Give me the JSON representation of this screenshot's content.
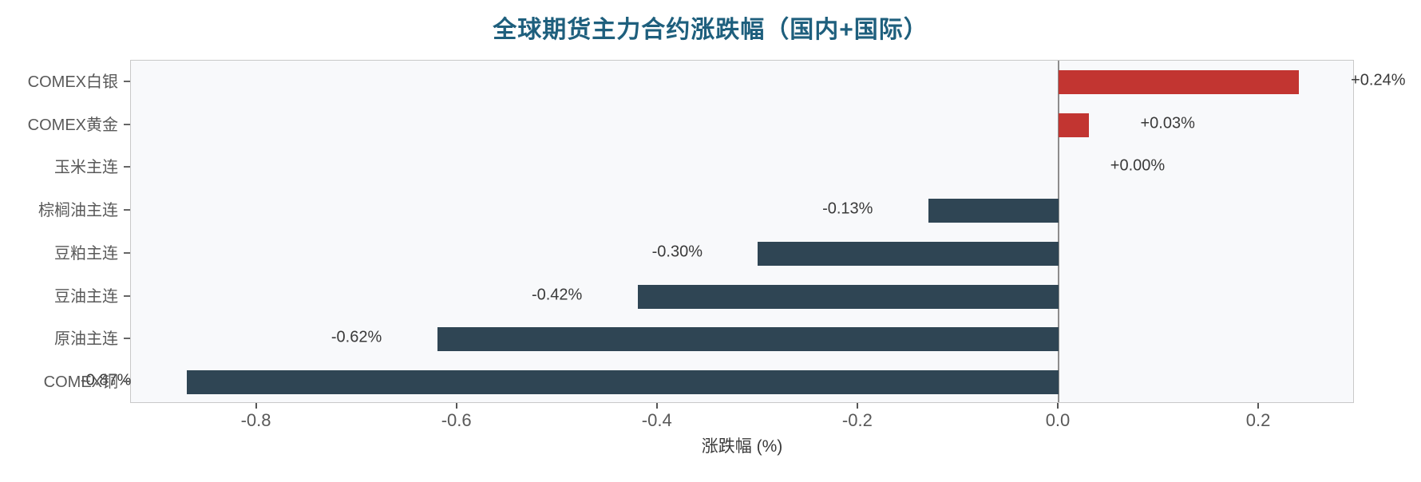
{
  "chart_data": {
    "type": "bar",
    "orientation": "horizontal",
    "title": "全球期货主力合约涨跌幅（国内+国际）",
    "xlabel": "涨跌幅 (%)",
    "categories": [
      "COMEX白银",
      "COMEX黄金",
      "玉米主连",
      "棕榈油主连",
      "豆粕主连",
      "豆油主连",
      "原油主连",
      "COMEX铜"
    ],
    "values": [
      0.24,
      0.03,
      0.0,
      -0.13,
      -0.3,
      -0.42,
      -0.62,
      -0.87
    ],
    "value_labels": [
      "+0.24%",
      "+0.03%",
      "+0.00%",
      "-0.13%",
      "-0.30%",
      "-0.42%",
      "-0.62%",
      "-0.87%"
    ],
    "xticks": [
      -0.8,
      -0.6,
      -0.4,
      -0.2,
      0.0,
      0.2
    ],
    "xtick_labels": [
      "-0.8",
      "-0.6",
      "-0.4",
      "-0.2",
      "0.0",
      "0.2"
    ],
    "xlim": [
      -0.9255,
      0.2955
    ],
    "grid": false,
    "legend": null,
    "colors": {
      "positive_bar": "#c23531",
      "negative_bar": "#2f4554",
      "title": "#1e5f7d",
      "plot_background": "#f8f9fb",
      "zero_line": "#8d8d8d"
    }
  }
}
